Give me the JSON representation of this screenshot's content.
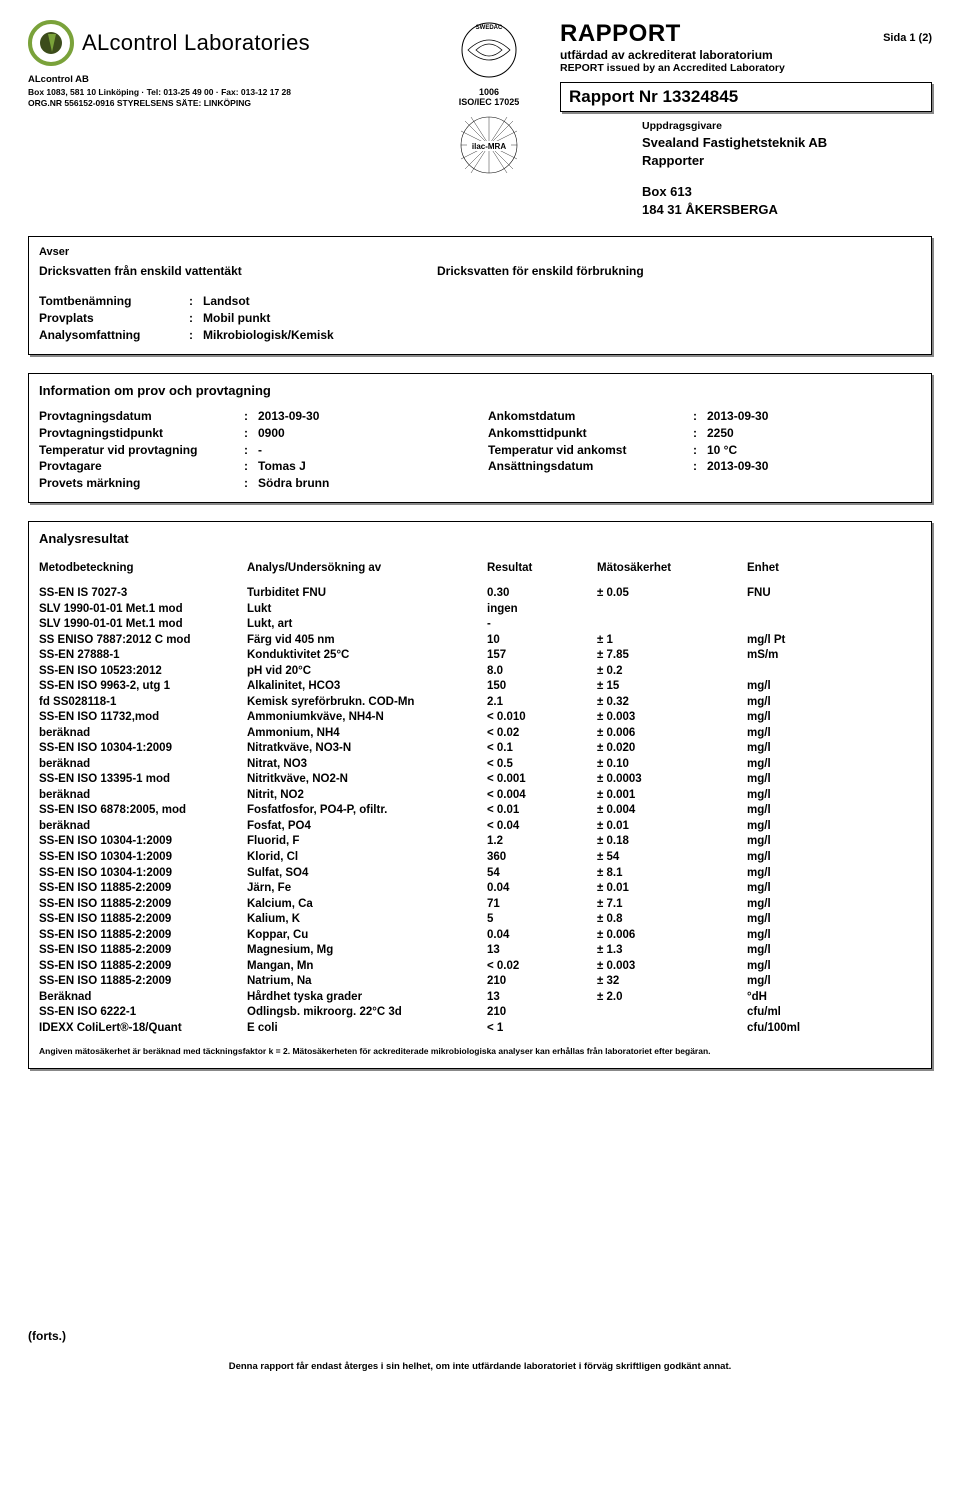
{
  "header": {
    "company_display": "ALcontrol Laboratories",
    "company_line1": "ALcontrol AB",
    "company_line2": "Box 1083, 581 10  Linköping  ·  Tel: 013-25 49 00  ·  Fax: 013-12 17 28",
    "company_line3": "ORG.NR 556152-0916  STYRELSENS SÄTE:  LINKÖPING",
    "acc_number": "1006",
    "acc_std": "ISO/IEC 17025",
    "report_word": "RAPPORT",
    "page_label": "Sida  1 (2)",
    "report_sub_sv": "utfärdad av ackrediterat laboratorium",
    "report_sub_en": "REPORT issued by an Accredited Laboratory",
    "report_nr_label": "Rapport Nr",
    "report_nr": "13324845",
    "client_label": "Uppdragsgivare",
    "client_name1": "Svealand Fastighetsteknik AB",
    "client_name2": "Rapporter",
    "client_addr1": "Box 613",
    "client_addr2": "184 31  ÅKERSBERGA",
    "logo_colors": {
      "outer": "#7aa23a",
      "inner": "#3c4c1b"
    },
    "swedac_text": "SWEDAC · ACKREDITERING"
  },
  "avser_box": {
    "avser_lbl": "Avser",
    "avser_val": "Dricksvatten från enskild vattentäkt",
    "right_val": "Dricksvatten för enskild förbrukning",
    "rows": [
      {
        "k": "Tomtbenämning",
        "v": "Landsot"
      },
      {
        "k": "Provplats",
        "v": "Mobil punkt"
      },
      {
        "k": "Analysomfattning",
        "v": "Mikrobiologisk/Kemisk"
      }
    ]
  },
  "info_box": {
    "title": "Information om prov och provtagning",
    "left": [
      {
        "k": "Provtagningsdatum",
        "v": "2013-09-30"
      },
      {
        "k": "Provtagningstidpunkt",
        "v": "0900"
      },
      {
        "k": "Temperatur vid provtagning",
        "v": "-"
      },
      {
        "k": "Provtagare",
        "v": "Tomas J"
      },
      {
        "k": "Provets märkning",
        "v": "Södra brunn"
      }
    ],
    "right": [
      {
        "k": "Ankomstdatum",
        "v": "2013-09-30"
      },
      {
        "k": "Ankomsttidpunkt",
        "v": "2250"
      },
      {
        "k": "Temperatur vid ankomst",
        "v": "10 °C"
      },
      {
        "k": "Ansättningsdatum",
        "v": "2013-09-30"
      }
    ]
  },
  "analysis": {
    "title": "Analysresultat",
    "headers": {
      "c1": "Metodbeteckning",
      "c2": "Analys/Undersökning av",
      "c3": "Resultat",
      "c4": "Mätosäkerhet",
      "c5": "Enhet"
    },
    "rows": [
      {
        "c1": "SS-EN IS 7027-3",
        "c2": "Turbiditet FNU",
        "c3": "0.30",
        "c4": "± 0.05",
        "c5": "FNU"
      },
      {
        "c1": "SLV 1990-01-01 Met.1 mod",
        "c2": "Lukt",
        "c3": "ingen",
        "c4": "",
        "c5": ""
      },
      {
        "c1": "SLV 1990-01-01 Met.1 mod",
        "c2": "Lukt, art",
        "c3": "-",
        "c4": "",
        "c5": ""
      },
      {
        "c1": "SS ENISO 7887:2012 C mod",
        "c2": "Färg vid 405 nm",
        "c3": "10",
        "c4": "± 1",
        "c5": "mg/l Pt"
      },
      {
        "c1": "SS-EN 27888-1",
        "c2": "Konduktivitet 25°C",
        "c3": "157",
        "c4": "± 7.85",
        "c5": "mS/m"
      },
      {
        "c1": "SS-EN ISO 10523:2012",
        "c2": "pH vid 20°C",
        "c3": "8.0",
        "c4": "± 0.2",
        "c5": ""
      },
      {
        "c1": "SS-EN ISO 9963-2, utg 1",
        "c2": "Alkalinitet, HCO3",
        "c3": "150",
        "c4": "± 15",
        "c5": "mg/l"
      },
      {
        "c1": "fd SS028118-1",
        "c2": "Kemisk syreförbrukn. COD-Mn",
        "c3": "2.1",
        "c4": "± 0.32",
        "c5": "mg/l"
      },
      {
        "c1": "SS-EN ISO 11732,mod",
        "c2": "Ammoniumkväve, NH4-N",
        "c3": "< 0.010",
        "c4": "± 0.003",
        "c5": "mg/l"
      },
      {
        "c1": "beräknad",
        "c2": "Ammonium, NH4",
        "c3": "< 0.02",
        "c4": "± 0.006",
        "c5": "mg/l"
      },
      {
        "c1": "SS-EN ISO 10304-1:2009",
        "c2": "Nitratkväve, NO3-N",
        "c3": "< 0.1",
        "c4": "± 0.020",
        "c5": "mg/l"
      },
      {
        "c1": "beräknad",
        "c2": "Nitrat, NO3",
        "c3": "< 0.5",
        "c4": "± 0.10",
        "c5": "mg/l"
      },
      {
        "c1": "SS-EN ISO 13395-1 mod",
        "c2": "Nitritkväve, NO2-N",
        "c3": "< 0.001",
        "c4": "± 0.0003",
        "c5": "mg/l"
      },
      {
        "c1": "beräknad",
        "c2": "Nitrit, NO2",
        "c3": "< 0.004",
        "c4": "± 0.001",
        "c5": "mg/l"
      },
      {
        "c1": "SS-EN ISO 6878:2005, mod",
        "c2": "Fosfatfosfor, PO4-P, ofiltr.",
        "c3": "< 0.01",
        "c4": "± 0.004",
        "c5": "mg/l"
      },
      {
        "c1": "beräknad",
        "c2": "Fosfat, PO4",
        "c3": "< 0.04",
        "c4": "± 0.01",
        "c5": "mg/l"
      },
      {
        "c1": "SS-EN ISO 10304-1:2009",
        "c2": "Fluorid, F",
        "c3": "1.2",
        "c4": "± 0.18",
        "c5": "mg/l"
      },
      {
        "c1": "SS-EN ISO 10304-1:2009",
        "c2": "Klorid, Cl",
        "c3": "360",
        "c4": "± 54",
        "c5": "mg/l"
      },
      {
        "c1": "SS-EN ISO 10304-1:2009",
        "c2": "Sulfat, SO4",
        "c3": "54",
        "c4": "± 8.1",
        "c5": "mg/l"
      },
      {
        "c1": "SS-EN ISO 11885-2:2009",
        "c2": "Järn, Fe",
        "c3": "0.04",
        "c4": "± 0.01",
        "c5": "mg/l"
      },
      {
        "c1": "SS-EN ISO 11885-2:2009",
        "c2": "Kalcium, Ca",
        "c3": "71",
        "c4": "± 7.1",
        "c5": "mg/l"
      },
      {
        "c1": "SS-EN ISO 11885-2:2009",
        "c2": "Kalium, K",
        "c3": "5",
        "c4": "± 0.8",
        "c5": "mg/l"
      },
      {
        "c1": "SS-EN ISO 11885-2:2009",
        "c2": "Koppar, Cu",
        "c3": "0.04",
        "c4": "± 0.006",
        "c5": "mg/l"
      },
      {
        "c1": "SS-EN ISO 11885-2:2009",
        "c2": "Magnesium, Mg",
        "c3": "13",
        "c4": "± 1.3",
        "c5": "mg/l"
      },
      {
        "c1": "SS-EN ISO 11885-2:2009",
        "c2": "Mangan, Mn",
        "c3": "< 0.02",
        "c4": "± 0.003",
        "c5": "mg/l"
      },
      {
        "c1": "SS-EN ISO 11885-2:2009",
        "c2": "Natrium, Na",
        "c3": "210",
        "c4": "± 32",
        "c5": "mg/l"
      },
      {
        "c1": "Beräknad",
        "c2": "Hårdhet tyska grader",
        "c3": "13",
        "c4": "± 2.0",
        "c5": "°dH"
      },
      {
        "c1": "SS-EN ISO 6222-1",
        "c2": "Odlingsb. mikroorg. 22°C 3d",
        "c3": "210",
        "c4": "",
        "c5": "cfu/ml"
      },
      {
        "c1": "IDEXX CoIiLert®-18/Quant",
        "c2": "E coli",
        "c3": "< 1",
        "c4": "",
        "c5": "cfu/100ml"
      }
    ],
    "footnote": "Angiven mätosäkerhet är beräknad med täckningsfaktor k = 2.  Mätosäkerheten för ackrediterade mikrobiologiska analyser kan erhållas från laboratoriet efter begäran."
  },
  "footer": {
    "forts": "(forts.)",
    "bottom": "Denna rapport får endast återges i sin helhet, om inte utfärdande laboratoriet i förväg skriftligen godkänt annat."
  }
}
